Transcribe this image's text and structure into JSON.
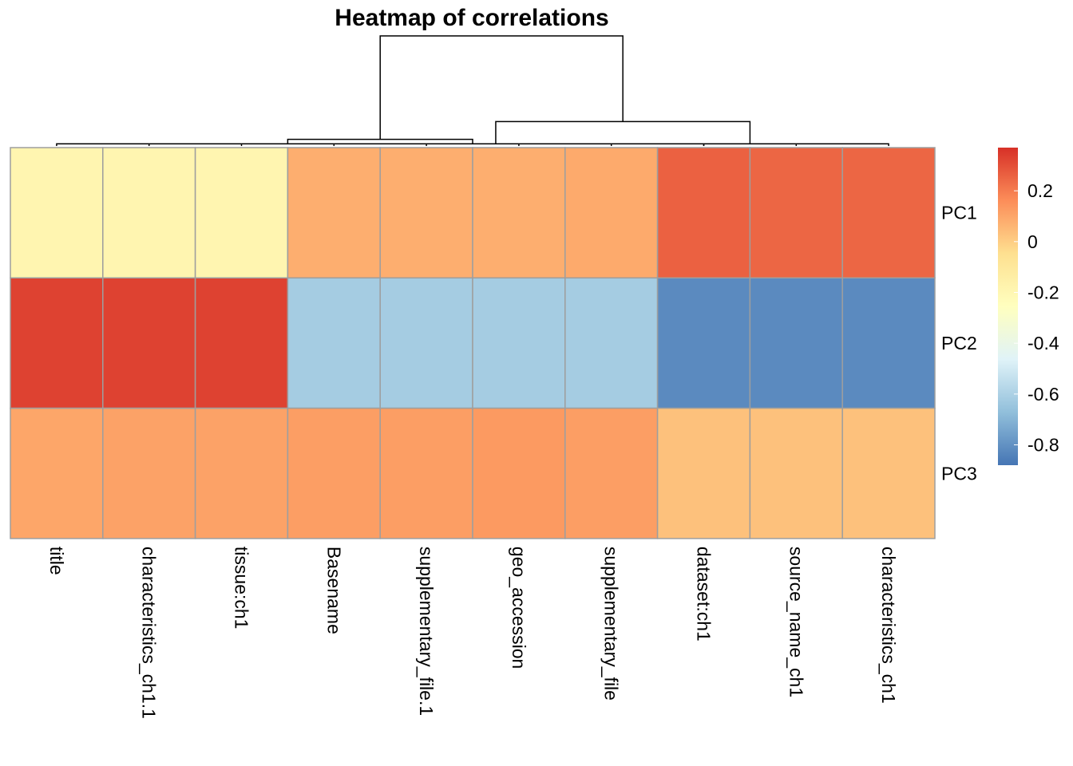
{
  "chart_data": {
    "type": "heatmap",
    "title": "Heatmap of correlations",
    "columns": [
      "title",
      "characteristics_ch1.1",
      "tissue:ch1",
      "Basename",
      "supplementary_file.1",
      "geo_accession",
      "supplementary_file",
      "dataset:ch1",
      "source_name_ch1",
      "characteristics_ch1"
    ],
    "rows": [
      "PC1",
      "PC2",
      "PC3"
    ],
    "values": [
      [
        -0.19,
        -0.19,
        -0.19,
        0.08,
        0.08,
        0.08,
        0.09,
        0.26,
        0.25,
        0.25
      ],
      [
        0.33,
        0.33,
        0.33,
        -0.62,
        -0.62,
        -0.62,
        -0.62,
        -0.82,
        -0.82,
        -0.82
      ],
      [
        0.1,
        0.11,
        0.11,
        0.12,
        0.12,
        0.13,
        0.12,
        0.03,
        0.03,
        0.03
      ]
    ],
    "legend": {
      "ticks": [
        0.2,
        0,
        -0.2,
        -0.4,
        -0.6,
        -0.8
      ],
      "tick_labels": [
        "0.2",
        "0",
        "-0.2",
        "-0.4",
        "-0.6",
        "-0.8"
      ],
      "range": [
        -0.88,
        0.37
      ],
      "colors_low_to_high": [
        "#4575B4",
        "#91BFDB",
        "#E0F3F8",
        "#FFFFBF",
        "#FEE090",
        "#FC8D59",
        "#D73027"
      ],
      "placement": "right"
    },
    "column_dendrogram": {
      "merges": [
        [
          0,
          1
        ],
        [
          2,
          3
        ],
        [
          4,
          5
        ],
        [
          6,
          7
        ],
        [
          7,
          8
        ],
        [
          9,
          10
        ],
        [
          11,
          12
        ],
        [
          14,
          15
        ],
        [
          16,
          17
        ]
      ],
      "heights": [
        0.02,
        0.02,
        0.02,
        0.02,
        0.02,
        0.02,
        0.06,
        0.22,
        0.99
      ]
    },
    "cell_border_color": "#9E9E9E"
  }
}
